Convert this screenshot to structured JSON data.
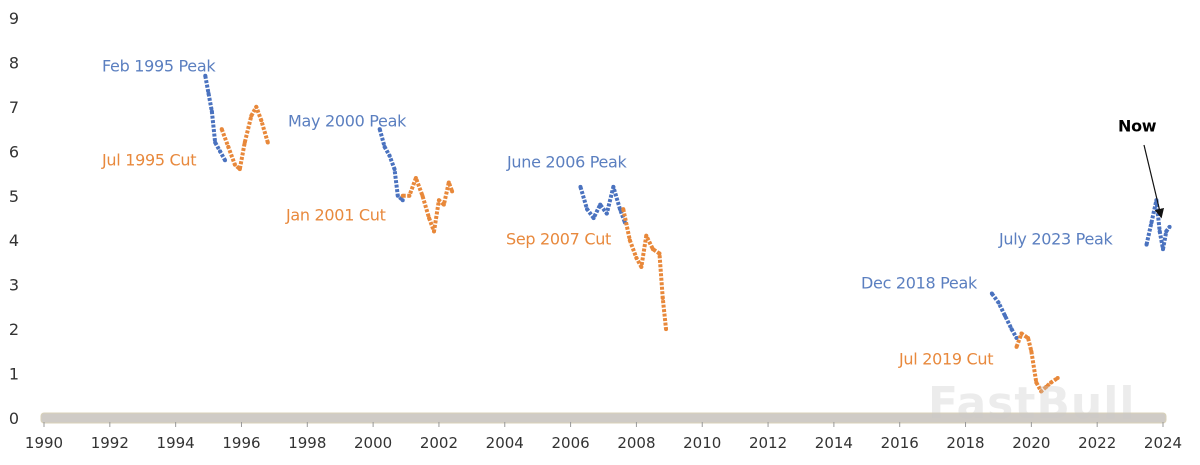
{
  "chart_data": {
    "type": "scatter",
    "title": "",
    "xlabel": "",
    "ylabel": "",
    "xlim": [
      1990,
      2024
    ],
    "ylim": [
      0,
      9
    ],
    "x_ticks": [
      "1990",
      "1992",
      "1994",
      "1996",
      "1998",
      "2000",
      "2002",
      "2004",
      "2006",
      "2008",
      "2010",
      "2012",
      "2014",
      "2016",
      "2018",
      "2020",
      "2022",
      "2024"
    ],
    "y_ticks": [
      "0",
      "1",
      "2",
      "3",
      "4",
      "5",
      "6",
      "7",
      "8",
      "9"
    ],
    "grid": false,
    "legend": "none",
    "colors": {
      "peak": "#4a72bf",
      "cut": "#e8883a"
    },
    "series": [
      {
        "kind": "peak",
        "points": [
          [
            1994.9,
            7.7
          ],
          [
            1995.0,
            7.3
          ],
          [
            1995.1,
            6.9
          ],
          [
            1995.2,
            6.2
          ],
          [
            1995.35,
            6.0
          ],
          [
            1995.5,
            5.8
          ]
        ]
      },
      {
        "kind": "cut",
        "points": [
          [
            1995.4,
            6.5
          ],
          [
            1995.6,
            6.1
          ],
          [
            1995.8,
            5.7
          ],
          [
            1995.95,
            5.6
          ],
          [
            1996.1,
            6.2
          ],
          [
            1996.3,
            6.8
          ],
          [
            1996.45,
            7.0
          ],
          [
            1996.6,
            6.7
          ],
          [
            1996.8,
            6.2
          ]
        ]
      },
      {
        "kind": "peak",
        "points": [
          [
            2000.2,
            6.5
          ],
          [
            2000.35,
            6.1
          ],
          [
            2000.5,
            5.9
          ],
          [
            2000.65,
            5.6
          ],
          [
            2000.75,
            5.0
          ],
          [
            2000.9,
            4.9
          ]
        ]
      },
      {
        "kind": "cut",
        "points": [
          [
            2000.9,
            5.0
          ],
          [
            2001.1,
            5.0
          ],
          [
            2001.3,
            5.4
          ],
          [
            2001.5,
            5.0
          ],
          [
            2001.7,
            4.5
          ],
          [
            2001.85,
            4.2
          ],
          [
            2002.0,
            4.9
          ],
          [
            2002.15,
            4.8
          ],
          [
            2002.3,
            5.3
          ],
          [
            2002.4,
            5.1
          ]
        ]
      },
      {
        "kind": "peak",
        "points": [
          [
            2006.3,
            5.2
          ],
          [
            2006.5,
            4.7
          ],
          [
            2006.7,
            4.5
          ],
          [
            2006.9,
            4.8
          ],
          [
            2007.1,
            4.6
          ],
          [
            2007.3,
            5.2
          ],
          [
            2007.5,
            4.7
          ],
          [
            2007.65,
            4.4
          ]
        ]
      },
      {
        "kind": "cut",
        "points": [
          [
            2007.6,
            4.7
          ],
          [
            2007.8,
            4.0
          ],
          [
            2008.0,
            3.6
          ],
          [
            2008.15,
            3.4
          ],
          [
            2008.3,
            4.1
          ],
          [
            2008.5,
            3.8
          ],
          [
            2008.7,
            3.7
          ],
          [
            2008.8,
            2.7
          ],
          [
            2008.9,
            2.0
          ]
        ]
      },
      {
        "kind": "peak",
        "points": [
          [
            2018.8,
            2.8
          ],
          [
            2019.0,
            2.6
          ],
          [
            2019.2,
            2.3
          ],
          [
            2019.4,
            2.0
          ],
          [
            2019.55,
            1.8
          ]
        ]
      },
      {
        "kind": "cut",
        "points": [
          [
            2019.55,
            1.6
          ],
          [
            2019.7,
            1.9
          ],
          [
            2019.9,
            1.8
          ],
          [
            2020.0,
            1.5
          ],
          [
            2020.15,
            0.8
          ],
          [
            2020.3,
            0.6
          ],
          [
            2020.45,
            0.7
          ],
          [
            2020.6,
            0.8
          ],
          [
            2020.8,
            0.9
          ]
        ]
      },
      {
        "kind": "peak",
        "points": [
          [
            2023.5,
            3.9
          ],
          [
            2023.65,
            4.4
          ],
          [
            2023.8,
            4.9
          ],
          [
            2023.9,
            4.2
          ],
          [
            2024.0,
            3.8
          ],
          [
            2024.1,
            4.2
          ],
          [
            2024.2,
            4.3
          ]
        ]
      }
    ],
    "annotations": [
      {
        "text": "Feb 1995 Peak",
        "kind": "peak"
      },
      {
        "text": "Jul 1995 Cut",
        "kind": "cut"
      },
      {
        "text": "May 2000 Peak",
        "kind": "peak"
      },
      {
        "text": "Jan 2001 Cut",
        "kind": "cut"
      },
      {
        "text": "June 2006 Peak",
        "kind": "peak"
      },
      {
        "text": "Sep 2007 Cut",
        "kind": "cut"
      },
      {
        "text": "Dec 2018 Peak",
        "kind": "peak"
      },
      {
        "text": "Jul 2019 Cut",
        "kind": "cut"
      },
      {
        "text": "July 2023 Peak",
        "kind": "peak"
      },
      {
        "text": "Now",
        "kind": "now"
      }
    ]
  },
  "watermark": "FastBull"
}
